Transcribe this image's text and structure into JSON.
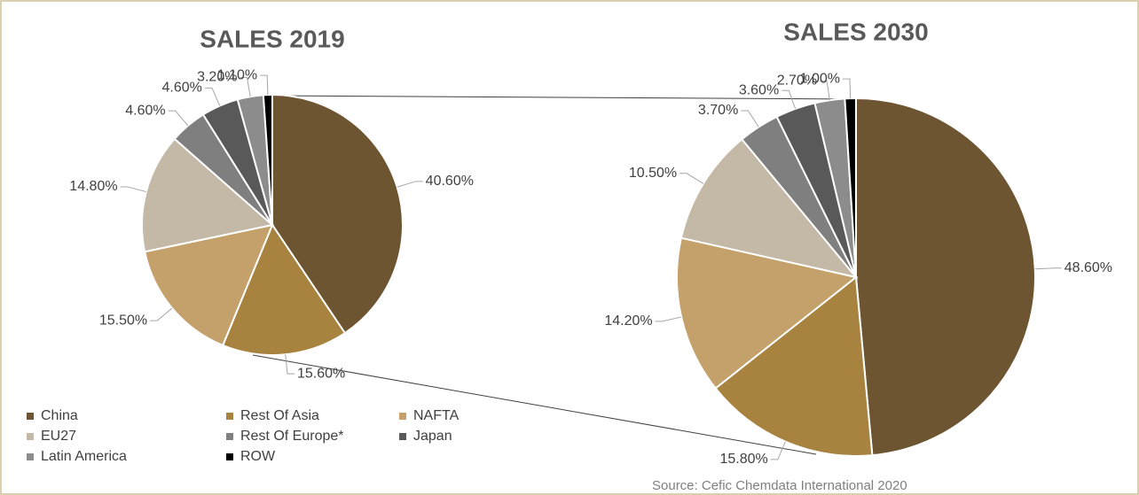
{
  "chart_data": [
    {
      "type": "pie",
      "title": "SALES 2019",
      "categories": [
        "China",
        "Rest Of Asia",
        "NAFTA",
        "EU27",
        "Rest Of Europe*",
        "Japan",
        "Latin America",
        "ROW"
      ],
      "colors": [
        "#6e5532",
        "#a8823f",
        "#c4a06b",
        "#c4b8a6",
        "#7f7f7f",
        "#595959",
        "#8c8c8c",
        "#000000"
      ],
      "values": [
        40.6,
        15.6,
        15.5,
        14.8,
        4.6,
        4.6,
        3.2,
        1.1
      ],
      "value_labels": [
        "40.60%",
        "15.60%",
        "15.50%",
        "14.80%",
        "4.60%",
        "4.60%",
        "3.20%",
        "1.10%"
      ]
    },
    {
      "type": "pie",
      "title": "SALES 2030",
      "values": [
        48.6,
        15.8,
        14.2,
        10.5,
        3.7,
        3.6,
        2.7,
        1.0
      ],
      "value_labels": [
        "48.60%",
        "15.80%",
        "14.20%",
        "10.50%",
        "3.70%",
        "3.60%",
        "2.70%",
        "1.00%"
      ]
    }
  ],
  "source": "Source: Cefic Chemdata International 2020"
}
